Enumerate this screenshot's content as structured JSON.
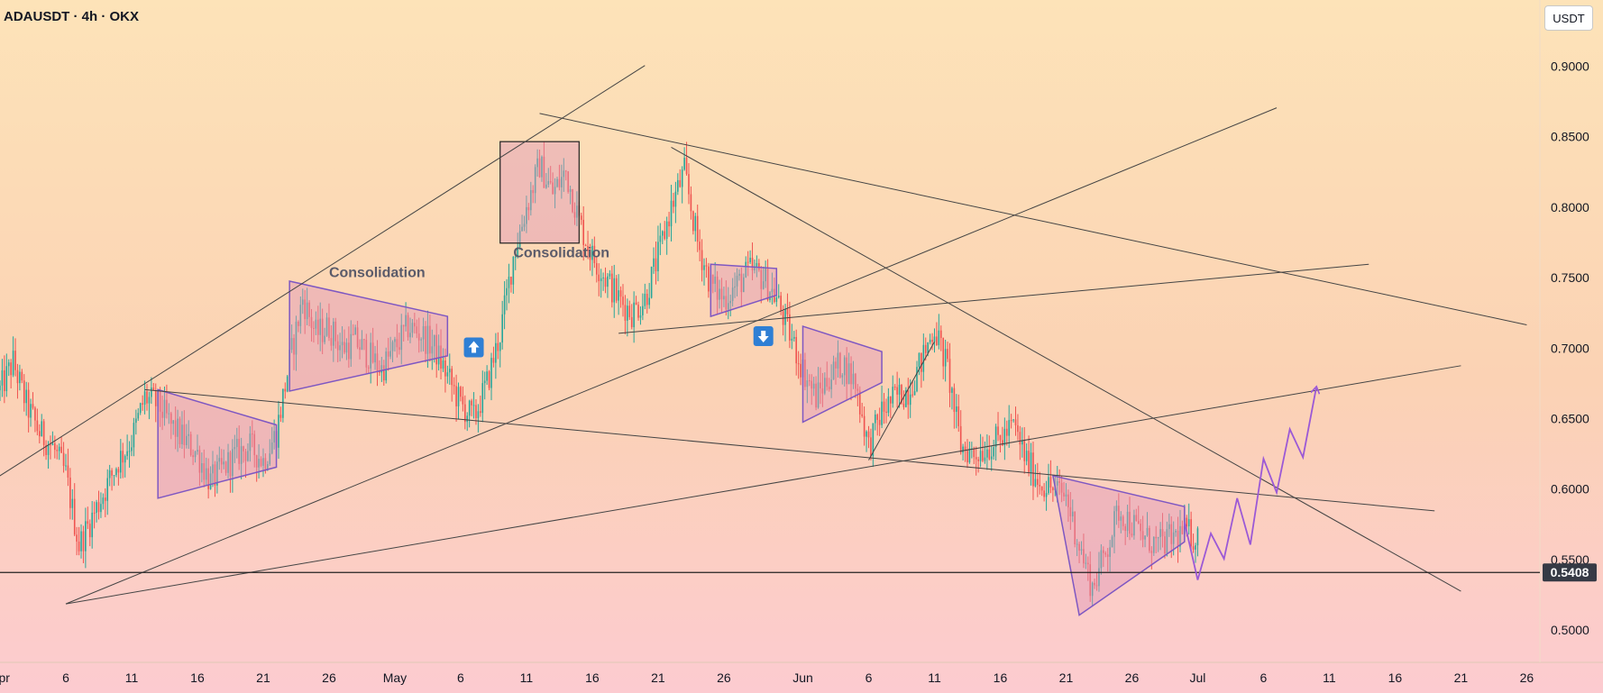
{
  "header": {
    "title": "ADAUSDT · 4h · OKX",
    "currency_button": "USDT"
  },
  "colors": {
    "up": "#26a69a",
    "down": "#ef5350",
    "pattern_fill": "rgba(225,150,185,0.45)",
    "pattern_stroke": "#7e57c2",
    "trendline": "#444444",
    "current_price_bg": "#363a45",
    "arrow_badge": "#2f7fd4"
  },
  "chart_data": {
    "type": "candlestick",
    "y_axis": {
      "ticks": [
        0.9,
        0.85,
        0.8,
        0.75,
        0.7,
        0.65,
        0.6,
        0.55,
        0.5
      ],
      "tick_labels": [
        "0.9000",
        "0.8500",
        "0.8000",
        "0.7500",
        "0.7000",
        "0.6500",
        "0.6000",
        "0.5500",
        "0.5000"
      ],
      "range": [
        0.477,
        0.947
      ]
    },
    "x_axis": {
      "range_days": [
        "2024-04-01",
        "2024-07-27"
      ],
      "ticks": [
        {
          "date": "2024-04-01",
          "label": "Apr"
        },
        {
          "date": "2024-04-06",
          "label": "6"
        },
        {
          "date": "2024-04-11",
          "label": "11"
        },
        {
          "date": "2024-04-16",
          "label": "16"
        },
        {
          "date": "2024-04-21",
          "label": "21"
        },
        {
          "date": "2024-04-26",
          "label": "26"
        },
        {
          "date": "2024-05-01",
          "label": "May"
        },
        {
          "date": "2024-05-06",
          "label": "6"
        },
        {
          "date": "2024-05-11",
          "label": "11"
        },
        {
          "date": "2024-05-16",
          "label": "16"
        },
        {
          "date": "2024-05-21",
          "label": "21"
        },
        {
          "date": "2024-05-26",
          "label": "26"
        },
        {
          "date": "2024-06-01",
          "label": "Jun"
        },
        {
          "date": "2024-06-06",
          "label": "6"
        },
        {
          "date": "2024-06-11",
          "label": "11"
        },
        {
          "date": "2024-06-16",
          "label": "16"
        },
        {
          "date": "2024-06-21",
          "label": "21"
        },
        {
          "date": "2024-06-26",
          "label": "26"
        },
        {
          "date": "2024-07-01",
          "label": "Jul"
        },
        {
          "date": "2024-07-06",
          "label": "6"
        },
        {
          "date": "2024-07-11",
          "label": "11"
        },
        {
          "date": "2024-07-16",
          "label": "16"
        },
        {
          "date": "2024-07-21",
          "label": "21"
        },
        {
          "date": "2024-07-26",
          "label": "26"
        }
      ]
    },
    "price_path": [
      [
        "2024-04-01",
        0.67
      ],
      [
        "2024-04-02",
        0.69
      ],
      [
        "2024-04-03",
        0.66
      ],
      [
        "2024-04-04",
        0.64
      ],
      [
        "2024-04-05",
        0.63
      ],
      [
        "2024-04-06",
        0.61
      ],
      [
        "2024-04-07",
        0.56
      ],
      [
        "2024-04-08",
        0.58
      ],
      [
        "2024-04-09",
        0.6
      ],
      [
        "2024-04-10",
        0.62
      ],
      [
        "2024-04-11",
        0.635
      ],
      [
        "2024-04-12",
        0.665
      ],
      [
        "2024-04-13",
        0.66
      ],
      [
        "2024-04-14",
        0.645
      ],
      [
        "2024-04-15",
        0.635
      ],
      [
        "2024-04-16",
        0.625
      ],
      [
        "2024-04-17",
        0.605
      ],
      [
        "2024-04-18",
        0.615
      ],
      [
        "2024-04-19",
        0.625
      ],
      [
        "2024-04-20",
        0.63
      ],
      [
        "2024-04-21",
        0.62
      ],
      [
        "2024-04-22",
        0.64
      ],
      [
        "2024-04-23",
        0.69
      ],
      [
        "2024-04-24",
        0.735
      ],
      [
        "2024-04-25",
        0.71
      ],
      [
        "2024-04-26",
        0.715
      ],
      [
        "2024-04-27",
        0.7
      ],
      [
        "2024-04-28",
        0.705
      ],
      [
        "2024-04-29",
        0.695
      ],
      [
        "2024-04-30",
        0.685
      ],
      [
        "2024-05-01",
        0.7
      ],
      [
        "2024-05-02",
        0.715
      ],
      [
        "2024-05-03",
        0.71
      ],
      [
        "2024-05-04",
        0.7
      ],
      [
        "2024-05-05",
        0.68
      ],
      [
        "2024-05-06",
        0.66
      ],
      [
        "2024-05-07",
        0.65
      ],
      [
        "2024-05-08",
        0.675
      ],
      [
        "2024-05-09",
        0.71
      ],
      [
        "2024-05-10",
        0.765
      ],
      [
        "2024-05-11",
        0.8
      ],
      [
        "2024-05-12",
        0.83
      ],
      [
        "2024-05-13",
        0.81
      ],
      [
        "2024-05-14",
        0.825
      ],
      [
        "2024-05-15",
        0.79
      ],
      [
        "2024-05-16",
        0.765
      ],
      [
        "2024-05-17",
        0.75
      ],
      [
        "2024-05-18",
        0.735
      ],
      [
        "2024-05-19",
        0.725
      ],
      [
        "2024-05-20",
        0.735
      ],
      [
        "2024-05-21",
        0.765
      ],
      [
        "2024-05-22",
        0.8
      ],
      [
        "2024-05-23",
        0.825
      ],
      [
        "2024-05-24",
        0.775
      ],
      [
        "2024-05-25",
        0.745
      ],
      [
        "2024-05-26",
        0.735
      ],
      [
        "2024-05-27",
        0.745
      ],
      [
        "2024-05-28",
        0.755
      ],
      [
        "2024-05-29",
        0.75
      ],
      [
        "2024-05-30",
        0.735
      ],
      [
        "2024-05-31",
        0.71
      ],
      [
        "2024-06-01",
        0.685
      ],
      [
        "2024-06-02",
        0.665
      ],
      [
        "2024-06-03",
        0.68
      ],
      [
        "2024-06-04",
        0.69
      ],
      [
        "2024-06-05",
        0.675
      ],
      [
        "2024-06-06",
        0.63
      ],
      [
        "2024-06-07",
        0.655
      ],
      [
        "2024-06-08",
        0.665
      ],
      [
        "2024-06-09",
        0.67
      ],
      [
        "2024-06-10",
        0.69
      ],
      [
        "2024-06-11",
        0.715
      ],
      [
        "2024-06-12",
        0.685
      ],
      [
        "2024-06-13",
        0.63
      ],
      [
        "2024-06-14",
        0.625
      ],
      [
        "2024-06-15",
        0.63
      ],
      [
        "2024-06-16",
        0.635
      ],
      [
        "2024-06-17",
        0.645
      ],
      [
        "2024-06-18",
        0.62
      ],
      [
        "2024-06-19",
        0.605
      ],
      [
        "2024-06-20",
        0.6
      ],
      [
        "2024-06-21",
        0.595
      ],
      [
        "2024-06-22",
        0.56
      ],
      [
        "2024-06-23",
        0.53
      ],
      [
        "2024-06-24",
        0.555
      ],
      [
        "2024-06-25",
        0.585
      ],
      [
        "2024-06-26",
        0.575
      ],
      [
        "2024-06-27",
        0.565
      ],
      [
        "2024-06-28",
        0.56
      ],
      [
        "2024-06-29",
        0.565
      ],
      [
        "2024-06-30",
        0.57
      ],
      [
        "2024-07-01",
        0.565
      ]
    ],
    "current_price": {
      "value": 0.5408,
      "label": "0.5408"
    },
    "annotations": [
      {
        "text": "Consolidation",
        "date": "2024-04-26",
        "price": 0.7505
      },
      {
        "text": "Consolidation",
        "date": "2024-05-10",
        "price": 0.7645
      }
    ],
    "arrow_badges": [
      {
        "direction": "up",
        "date": "2024-05-07",
        "price": 0.7005
      },
      {
        "direction": "down",
        "date": "2024-05-29",
        "price": 0.7085
      }
    ],
    "boxes": [
      {
        "from_date": "2024-05-09",
        "to_date": "2024-05-15",
        "price_top": 0.8465,
        "price_bottom": 0.7745
      }
    ],
    "triangles": [
      [
        [
          "2024-04-13",
          0.6705
        ],
        [
          "2024-04-22",
          0.6455
        ],
        [
          "2024-04-22",
          0.6155
        ],
        [
          "2024-04-13",
          0.5935
        ]
      ],
      [
        [
          "2024-04-23",
          0.7475
        ],
        [
          "2024-05-05",
          0.7225
        ],
        [
          "2024-05-05",
          0.6945
        ],
        [
          "2024-04-23",
          0.6695
        ]
      ],
      [
        [
          "2024-05-25",
          0.7595
        ],
        [
          "2024-05-30",
          0.7565
        ],
        [
          "2024-05-30",
          0.7375
        ],
        [
          "2024-05-25",
          0.7225
        ]
      ],
      [
        [
          "2024-06-01",
          0.7155
        ],
        [
          "2024-06-07",
          0.6975
        ],
        [
          "2024-06-07",
          0.6755
        ],
        [
          "2024-06-01",
          0.6475
        ]
      ],
      [
        [
          "2024-06-20",
          0.6095
        ],
        [
          "2024-06-30",
          0.5875
        ],
        [
          "2024-06-30",
          0.5625
        ],
        [
          "2024-06-22",
          0.5105
        ]
      ]
    ],
    "trendlines": [
      [
        [
          "2024-03-31",
          0.6035
        ],
        [
          "2024-05-20",
          0.9005
        ]
      ],
      [
        [
          "2024-04-06",
          0.5185
        ],
        [
          "2024-07-07",
          0.8705
        ]
      ],
      [
        [
          "2024-04-06",
          0.5185
        ],
        [
          "2024-07-21",
          0.6875
        ]
      ],
      [
        [
          "2024-04-12",
          0.6705
        ],
        [
          "2024-07-19",
          0.5845
        ]
      ],
      [
        [
          "2024-05-12",
          0.8665
        ],
        [
          "2024-07-26",
          0.7165
        ]
      ],
      [
        [
          "2024-05-22",
          0.8425
        ],
        [
          "2024-07-21",
          0.5275
        ]
      ],
      [
        [
          "2024-05-18",
          0.7105
        ],
        [
          "2024-07-14",
          0.7595
        ]
      ],
      [
        [
          "2024-06-06",
          0.6205
        ],
        [
          "2024-06-11",
          0.7045
        ]
      ]
    ],
    "projection": [
      [
        "2024-06-30",
        0.5765
      ],
      [
        "2024-07-01",
        0.5355
      ],
      [
        "2024-07-02",
        0.5685
      ],
      [
        "2024-07-03",
        0.5505
      ],
      [
        "2024-07-04",
        0.5935
      ],
      [
        "2024-07-05",
        0.5605
      ],
      [
        "2024-07-06",
        0.6215
      ],
      [
        "2024-07-07",
        0.5975
      ],
      [
        "2024-07-08",
        0.6425
      ],
      [
        "2024-07-09",
        0.6225
      ],
      [
        "2024-07-10",
        0.6715
      ]
    ],
    "grid": false,
    "legend": "none"
  }
}
